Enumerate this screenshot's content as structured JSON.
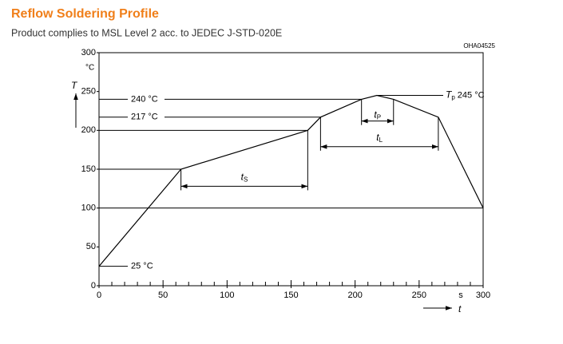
{
  "chart_data": {
    "type": "line",
    "title": "Reflow Soldering Profile",
    "subtitle": "Product complies to MSL Level 2 acc. to JEDEC J-STD-020E",
    "figure_id": "OHA04525",
    "x_label": "t",
    "x_unit": "s",
    "y_label": "T",
    "y_unit": "°C",
    "xlim": [
      0,
      300
    ],
    "ylim": [
      0,
      300
    ],
    "xticks": [
      0,
      50,
      100,
      150,
      200,
      250,
      300
    ],
    "xminorticks": [
      10,
      20,
      30,
      40,
      60,
      70,
      80,
      90,
      110,
      120,
      130,
      140,
      160,
      170,
      180,
      190,
      210,
      220,
      230,
      240,
      260,
      270,
      280,
      290
    ],
    "yticks": [
      0,
      50,
      100,
      150,
      200,
      250,
      300
    ],
    "color": "#000000",
    "x": [
      0,
      64,
      163,
      173,
      205,
      217,
      230,
      265,
      300
    ],
    "values": [
      25,
      150,
      200,
      217,
      240,
      245,
      240,
      217,
      100
    ],
    "hlines": [
      {
        "value": 240,
        "label": "240 °C"
      },
      {
        "value": 217,
        "label": "217 °C"
      },
      {
        "value": 200
      },
      {
        "value": 150
      },
      {
        "value": 100
      },
      {
        "value": 25,
        "label": "25 °C"
      }
    ],
    "peak": {
      "value": 245,
      "symbol": "T",
      "sub": "p",
      "text": "245 °C"
    },
    "intervals": [
      {
        "symbol": "t",
        "sub": "S",
        "start": 64,
        "end": 163,
        "level": 128
      },
      {
        "symbol": "t",
        "sub": "L",
        "start": 173,
        "end": 265,
        "level": 179
      },
      {
        "symbol": "t",
        "sub": "P",
        "start": 205,
        "end": 230,
        "level": 212
      }
    ]
  }
}
